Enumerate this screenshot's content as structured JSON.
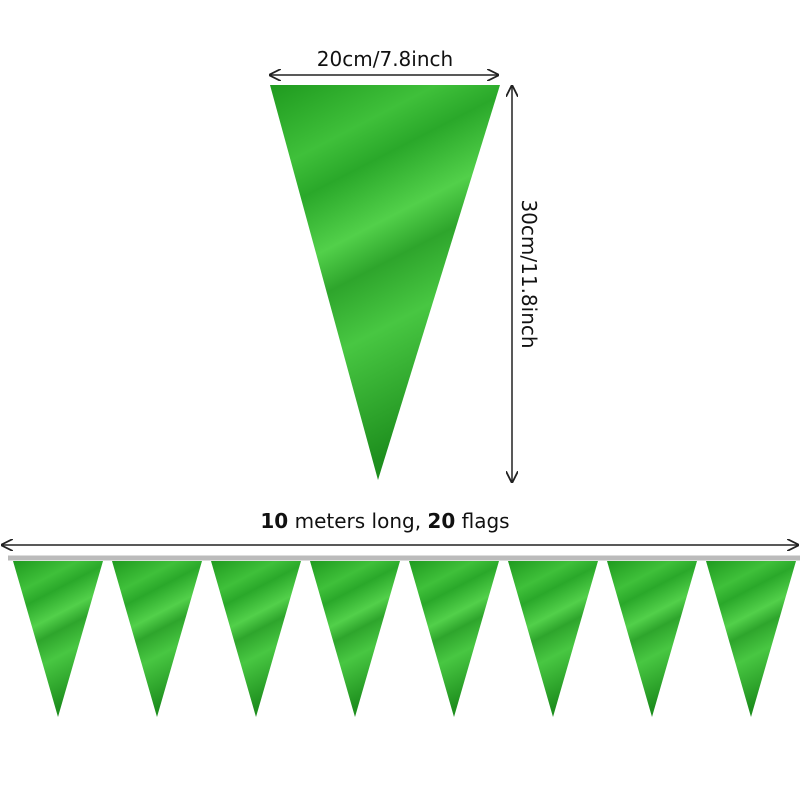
{
  "width_label": "20cm/7.8inch",
  "height_label": "30cm/11.8inch",
  "length_label": [
    "10",
    "meters long,",
    "20",
    "flags"
  ]
}
